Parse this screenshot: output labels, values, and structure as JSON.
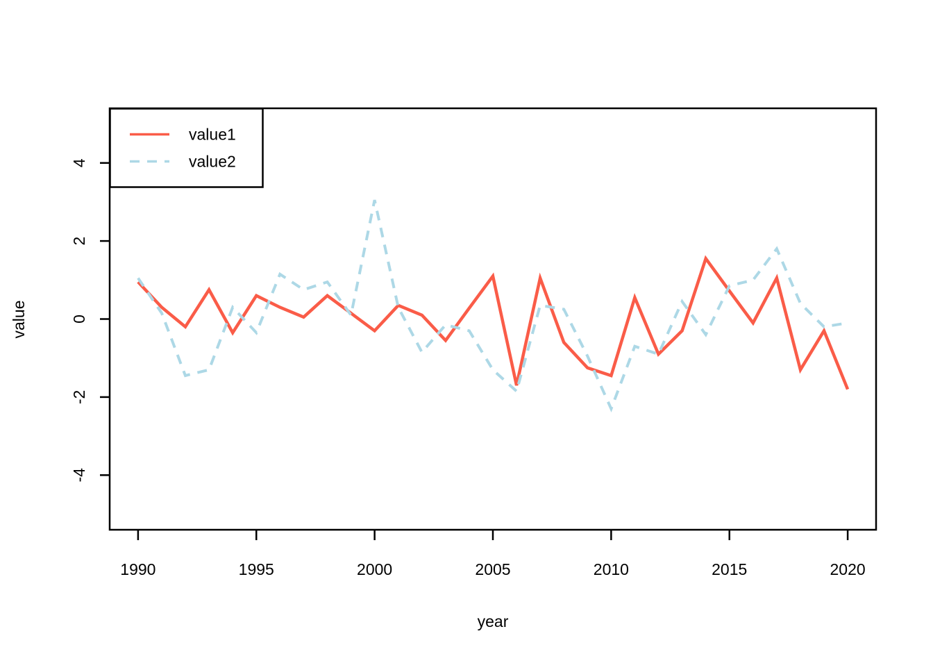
{
  "figure": {
    "background": "#ffffff",
    "axis_color": "#000000",
    "text_color": "#000000"
  },
  "chart_data": {
    "type": "line",
    "title": "",
    "xlabel": "year",
    "ylabel": "value",
    "xlim": [
      1988.8,
      2021.2
    ],
    "ylim": [
      -5.4,
      5.4
    ],
    "x_ticks": [
      1990,
      1995,
      2000,
      2005,
      2010,
      2015,
      2020
    ],
    "y_ticks": [
      -4,
      -2,
      0,
      2,
      4
    ],
    "grid": false,
    "legend_position": "topleft",
    "x": [
      1990,
      1991,
      1992,
      1993,
      1994,
      1995,
      1996,
      1997,
      1998,
      1999,
      2000,
      2001,
      2002,
      2003,
      2004,
      2005,
      2006,
      2007,
      2008,
      2009,
      2010,
      2011,
      2012,
      2013,
      2014,
      2015,
      2016,
      2017,
      2018,
      2019,
      2020
    ],
    "series": [
      {
        "name": "value1",
        "color": "#FA5C48",
        "style": "solid",
        "line_width": 4.5,
        "values": [
          0.95,
          0.3,
          -0.2,
          0.75,
          -0.35,
          0.6,
          0.3,
          0.05,
          0.6,
          0.15,
          -0.3,
          0.35,
          0.1,
          -0.55,
          0.28,
          1.1,
          -1.7,
          1.05,
          -0.6,
          -1.25,
          -1.45,
          0.55,
          -0.9,
          -0.3,
          1.55,
          0.72,
          -0.1,
          1.05,
          -1.3,
          -0.3,
          -1.8
        ]
      },
      {
        "name": "value2",
        "color": "#ADD8E6",
        "style": "dashed",
        "line_width": 4,
        "values": [
          1.05,
          0.15,
          -1.45,
          -1.3,
          0.3,
          -0.35,
          1.15,
          0.75,
          0.95,
          0.1,
          3.05,
          0.3,
          -0.85,
          -0.15,
          -0.3,
          -1.3,
          -1.85,
          0.35,
          0.25,
          -0.95,
          -2.3,
          -0.7,
          -0.9,
          0.45,
          -0.4,
          0.85,
          1.0,
          1.8,
          0.4,
          -0.2,
          -0.1
        ]
      }
    ]
  },
  "legend": {
    "items": [
      {
        "label": "value1"
      },
      {
        "label": "value2"
      }
    ]
  }
}
